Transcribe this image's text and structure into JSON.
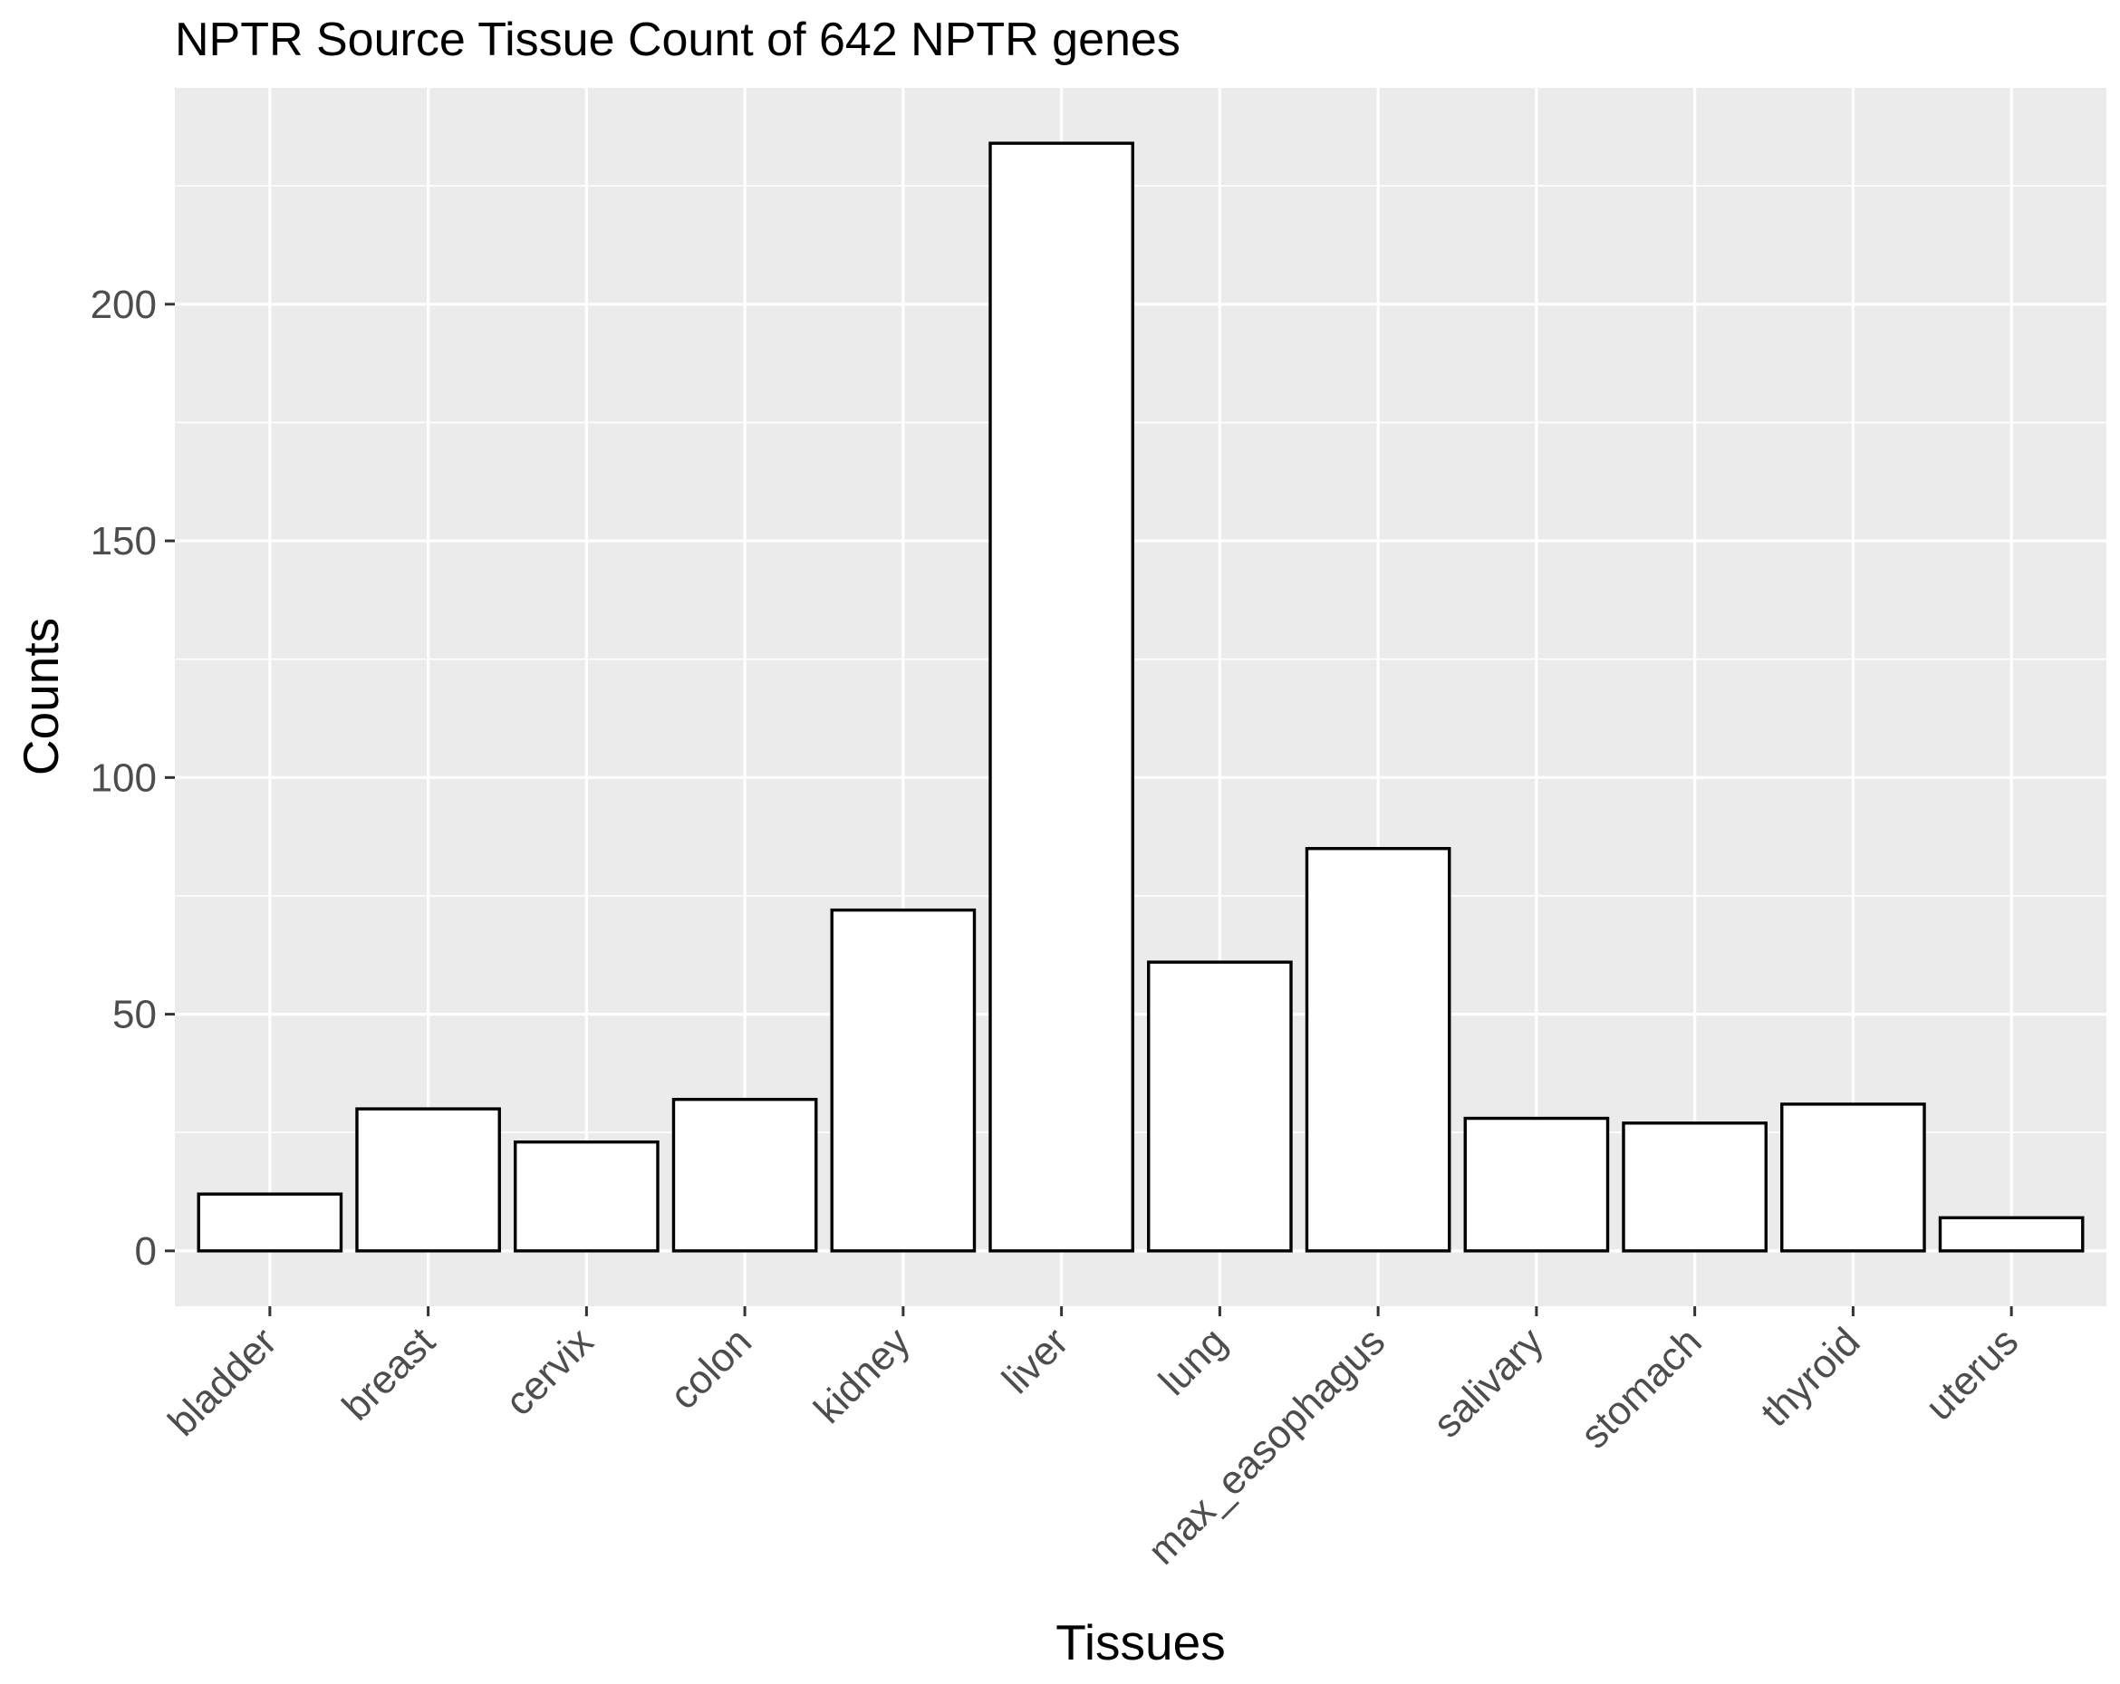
{
  "chart_data": {
    "type": "bar",
    "title": "NPTR Source Tissue Count of 642 NPTR genes",
    "xlabel": "Tissues",
    "ylabel": "Counts",
    "categories": [
      "bladder",
      "breast",
      "cervix",
      "colon",
      "kidney",
      "liver",
      "lung",
      "max_easophagus",
      "salivary",
      "stomach",
      "thyroid",
      "uterus"
    ],
    "values": [
      12,
      30,
      23,
      32,
      72,
      234,
      61,
      85,
      28,
      27,
      31,
      7
    ],
    "ylim": [
      -11.7,
      245.7
    ],
    "yticks": [
      0,
      50,
      100,
      150,
      200
    ],
    "grid": true,
    "legend": "none",
    "colors": {
      "panel": "#ebebeb",
      "grid": "#ffffff",
      "bar_fill": "#ffffff",
      "bar_stroke": "#000000",
      "tick_text": "#4d4d4d",
      "tick_mark": "#333333"
    }
  }
}
